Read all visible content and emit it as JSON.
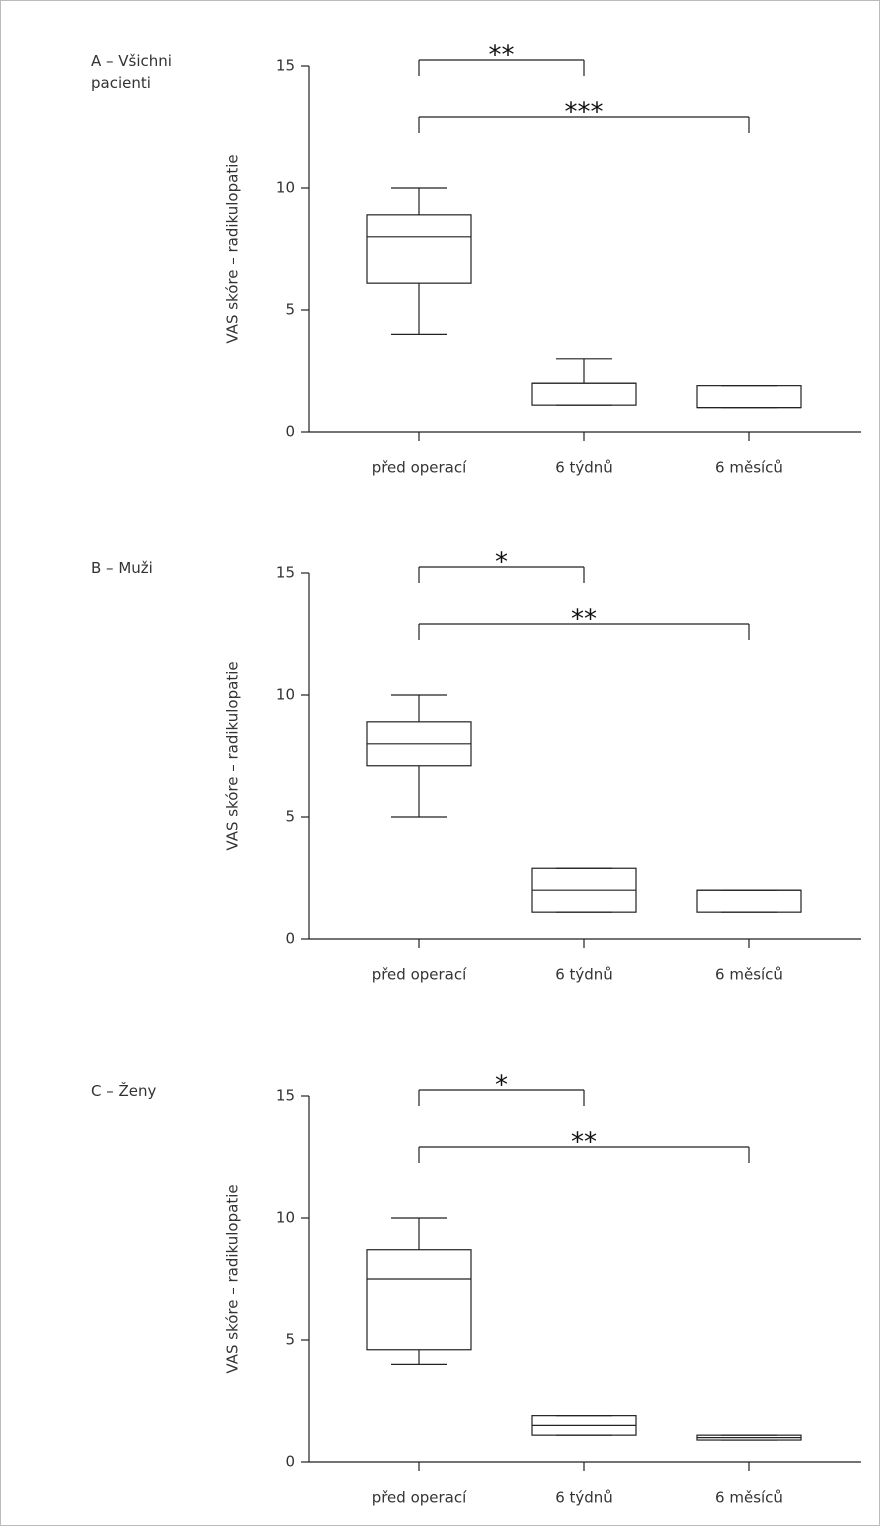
{
  "chart_data": [
    {
      "type": "box",
      "title": "A – Všichni pacienti",
      "y_label": "VAS skóre – radikulopatie",
      "categories": [
        "před operací",
        "6 týdnů",
        "6 měsíců"
      ],
      "stats": [
        {
          "min": 4,
          "q1": 6.1,
          "median": 8,
          "q3": 8.9,
          "max": 10
        },
        {
          "min": 1.1,
          "q1": 1.1,
          "median": 2,
          "q3": 2,
          "max": 3
        },
        {
          "min": 1,
          "q1": 1,
          "median": 1,
          "q3": 1.9,
          "max": 1.9
        }
      ],
      "ylim": [
        0,
        15
      ],
      "yticks": [
        0,
        5,
        10,
        15
      ],
      "brackets": [
        {
          "from": 0,
          "to": 1,
          "label": "**"
        },
        {
          "from": 0,
          "to": 2,
          "label": "***"
        }
      ]
    },
    {
      "type": "box",
      "title": "B – Muži",
      "y_label": "VAS skóre – radikulopatie",
      "categories": [
        "před operací",
        "6 týdnů",
        "6 měsíců"
      ],
      "stats": [
        {
          "min": 5,
          "q1": 7.1,
          "median": 8,
          "q3": 8.9,
          "max": 10
        },
        {
          "min": 1.1,
          "q1": 1.1,
          "median": 2,
          "q3": 2.9,
          "max": 2.9
        },
        {
          "min": 1.1,
          "q1": 1.1,
          "median": 2,
          "q3": 2,
          "max": 2
        }
      ],
      "ylim": [
        0,
        15
      ],
      "yticks": [
        0,
        5,
        10,
        15
      ],
      "brackets": [
        {
          "from": 0,
          "to": 1,
          "label": "*"
        },
        {
          "from": 0,
          "to": 2,
          "label": "**"
        }
      ]
    },
    {
      "type": "box",
      "title": "C – Ženy",
      "y_label": "VAS skóre – radikulopatie",
      "categories": [
        "před operací",
        "6 týdnů",
        "6 měsíců"
      ],
      "stats": [
        {
          "min": 4,
          "q1": 4.6,
          "median": 7.5,
          "q3": 8.7,
          "max": 10
        },
        {
          "min": 1.1,
          "q1": 1.1,
          "median": 1.5,
          "q3": 1.9,
          "max": 1.9
        },
        {
          "min": 0.9,
          "q1": 0.9,
          "median": 1,
          "q3": 1.1,
          "max": 1.1
        }
      ],
      "ylim": [
        0,
        15
      ],
      "yticks": [
        0,
        5,
        10,
        15
      ],
      "brackets": [
        {
          "from": 0,
          "to": 1,
          "label": "*"
        },
        {
          "from": 0,
          "to": 2,
          "label": "**"
        }
      ]
    }
  ]
}
